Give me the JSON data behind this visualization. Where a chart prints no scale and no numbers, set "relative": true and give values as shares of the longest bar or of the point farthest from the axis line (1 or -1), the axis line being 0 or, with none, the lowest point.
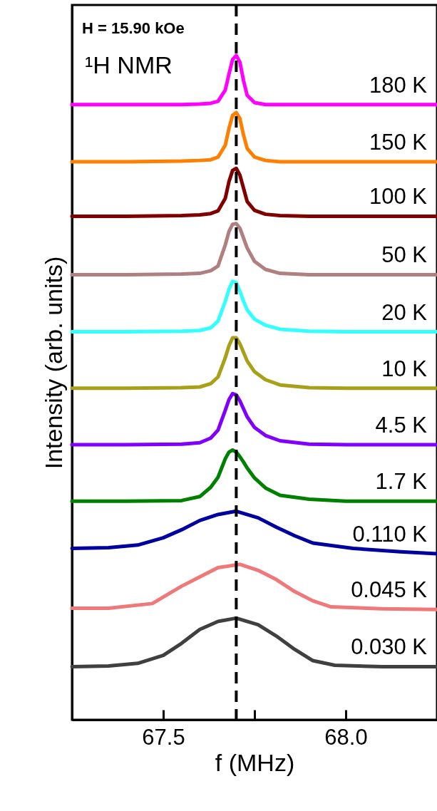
{
  "chart_data": {
    "type": "line",
    "relative": true,
    "xlabel": "f (MHz)",
    "ylabel": "Intensity (arb. units)",
    "xlim": [
      67.25,
      68.25
    ],
    "xticks": [
      67.5,
      {
        "value": 67.75,
        "label": null
      },
      {
        "value": 68,
        "label": "68.0"
      }
    ],
    "tick_labels": "x",
    "grid": false,
    "legend": false,
    "marker": "none",
    "line_style": "solid",
    "annotations": [
      "H = 15.90 kOe",
      "¹H NMR"
    ],
    "ref_lines": [
      {
        "axis": "x",
        "value": 67.7,
        "label": null,
        "color": "#000000",
        "line_style": "dashed"
      }
    ],
    "series": [
      {
        "name": "180 K",
        "color": "#ff00ff",
        "x": [
          67.25,
          67.4,
          67.55,
          67.6,
          67.63,
          67.65,
          67.67,
          67.68,
          67.69,
          67.7,
          67.71,
          67.72,
          67.73,
          67.75,
          67.78,
          67.82,
          67.9,
          68.0,
          68.1,
          68.25
        ],
        "values": [
          0.926,
          0.926,
          0.926,
          0.927,
          0.928,
          0.931,
          0.948,
          0.972,
          0.994,
          1.0,
          0.99,
          0.962,
          0.94,
          0.929,
          0.926,
          0.926,
          0.926,
          0.926,
          0.926,
          0.926
        ]
      },
      {
        "name": "150 K",
        "color": "#ff8000",
        "x": [
          67.25,
          67.4,
          67.55,
          67.6,
          67.63,
          67.65,
          67.67,
          67.68,
          67.69,
          67.7,
          67.71,
          67.72,
          67.73,
          67.75,
          67.78,
          67.82,
          67.9,
          68.0,
          68.1,
          68.25
        ],
        "values": [
          0.84,
          0.84,
          0.841,
          0.842,
          0.843,
          0.847,
          0.865,
          0.89,
          0.91,
          0.914,
          0.905,
          0.88,
          0.86,
          0.847,
          0.842,
          0.84,
          0.84,
          0.84,
          0.84,
          0.84
        ]
      },
      {
        "name": "100 K",
        "color": "#800000",
        "x": [
          67.25,
          67.4,
          67.55,
          67.6,
          67.63,
          67.65,
          67.67,
          67.68,
          67.69,
          67.7,
          67.71,
          67.72,
          67.73,
          67.75,
          67.78,
          67.82,
          67.9,
          68.0,
          68.1,
          68.25
        ],
        "values": [
          0.758,
          0.758,
          0.759,
          0.76,
          0.762,
          0.766,
          0.785,
          0.81,
          0.827,
          0.83,
          0.82,
          0.8,
          0.78,
          0.767,
          0.761,
          0.759,
          0.758,
          0.758,
          0.758,
          0.758
        ]
      },
      {
        "name": "50 K",
        "color": "#b08080",
        "x": [
          67.25,
          67.4,
          67.55,
          67.6,
          67.63,
          67.65,
          67.67,
          67.68,
          67.69,
          67.7,
          67.71,
          67.72,
          67.73,
          67.75,
          67.78,
          67.82,
          67.9,
          68.0,
          68.1,
          68.25
        ],
        "values": [
          0.67,
          0.67,
          0.671,
          0.672,
          0.676,
          0.683,
          0.715,
          0.735,
          0.746,
          0.747,
          0.74,
          0.725,
          0.71,
          0.69,
          0.678,
          0.672,
          0.67,
          0.67,
          0.67,
          0.67
        ]
      },
      {
        "name": "20 K",
        "color": "#33ffff",
        "x": [
          67.25,
          67.4,
          67.55,
          67.6,
          67.63,
          67.65,
          67.67,
          67.68,
          67.69,
          67.7,
          67.71,
          67.72,
          67.73,
          67.75,
          67.78,
          67.82,
          67.9,
          68.0,
          68.1,
          68.25
        ],
        "values": [
          0.584,
          0.584,
          0.585,
          0.586,
          0.59,
          0.6,
          0.63,
          0.648,
          0.66,
          0.658,
          0.645,
          0.63,
          0.617,
          0.603,
          0.594,
          0.588,
          0.585,
          0.584,
          0.584,
          0.584
        ]
      },
      {
        "name": "10 K",
        "color": "#a8a018",
        "x": [
          67.25,
          67.4,
          67.55,
          67.6,
          67.63,
          67.65,
          67.67,
          67.68,
          67.69,
          67.7,
          67.71,
          67.72,
          67.73,
          67.75,
          67.78,
          67.82,
          67.9,
          68.0,
          68.1,
          68.25
        ],
        "values": [
          0.499,
          0.499,
          0.5,
          0.501,
          0.506,
          0.516,
          0.545,
          0.563,
          0.575,
          0.575,
          0.566,
          0.553,
          0.54,
          0.524,
          0.512,
          0.504,
          0.5,
          0.499,
          0.499,
          0.499
        ]
      },
      {
        "name": "4.5 K",
        "color": "#8000ff",
        "x": [
          67.25,
          67.4,
          67.55,
          67.6,
          67.63,
          67.65,
          67.67,
          67.68,
          67.69,
          67.7,
          67.71,
          67.72,
          67.73,
          67.75,
          67.78,
          67.82,
          67.9,
          68.0,
          68.1,
          68.25
        ],
        "values": [
          0.414,
          0.414,
          0.415,
          0.417,
          0.424,
          0.436,
          0.466,
          0.482,
          0.491,
          0.489,
          0.48,
          0.468,
          0.456,
          0.44,
          0.428,
          0.42,
          0.415,
          0.414,
          0.414,
          0.414
        ]
      },
      {
        "name": "1.7 K",
        "color": "#008000",
        "x": [
          67.25,
          67.4,
          67.55,
          67.6,
          67.63,
          67.65,
          67.67,
          67.68,
          67.69,
          67.7,
          67.71,
          67.72,
          67.73,
          67.75,
          67.78,
          67.82,
          67.9,
          68.0,
          68.1,
          68.25
        ],
        "values": [
          0.329,
          0.329,
          0.33,
          0.336,
          0.35,
          0.365,
          0.393,
          0.403,
          0.406,
          0.403,
          0.396,
          0.388,
          0.379,
          0.364,
          0.349,
          0.338,
          0.332,
          0.329,
          0.329,
          0.329
        ]
      },
      {
        "name": "0.110 K",
        "color": "#0000a0",
        "x": [
          67.25,
          67.35,
          67.43,
          67.5,
          67.55,
          67.6,
          67.65,
          67.7,
          67.76,
          67.81,
          67.86,
          67.91,
          68.02,
          68.15,
          68.25
        ],
        "values": [
          0.258,
          0.259,
          0.263,
          0.274,
          0.286,
          0.3,
          0.309,
          0.314,
          0.304,
          0.29,
          0.277,
          0.266,
          0.258,
          0.253,
          0.25
        ]
      },
      {
        "name": "0.045 K",
        "color": "#f07878",
        "x": [
          67.25,
          67.35,
          67.47,
          67.55,
          67.6,
          67.65,
          67.71,
          67.76,
          67.81,
          67.86,
          67.91,
          67.96,
          68.1,
          68.25
        ],
        "values": [
          0.168,
          0.168,
          0.175,
          0.201,
          0.215,
          0.229,
          0.234,
          0.225,
          0.211,
          0.193,
          0.179,
          0.17,
          0.167,
          0.166
        ]
      },
      {
        "name": "0.030 K",
        "color": "#404040",
        "x": [
          67.25,
          67.35,
          67.43,
          67.5,
          67.55,
          67.6,
          67.65,
          67.7,
          67.76,
          67.81,
          67.86,
          67.91,
          67.97,
          68.1,
          68.25
        ],
        "values": [
          0.08,
          0.081,
          0.085,
          0.097,
          0.115,
          0.136,
          0.148,
          0.153,
          0.143,
          0.126,
          0.106,
          0.089,
          0.082,
          0.08,
          0.08
        ]
      }
    ]
  }
}
